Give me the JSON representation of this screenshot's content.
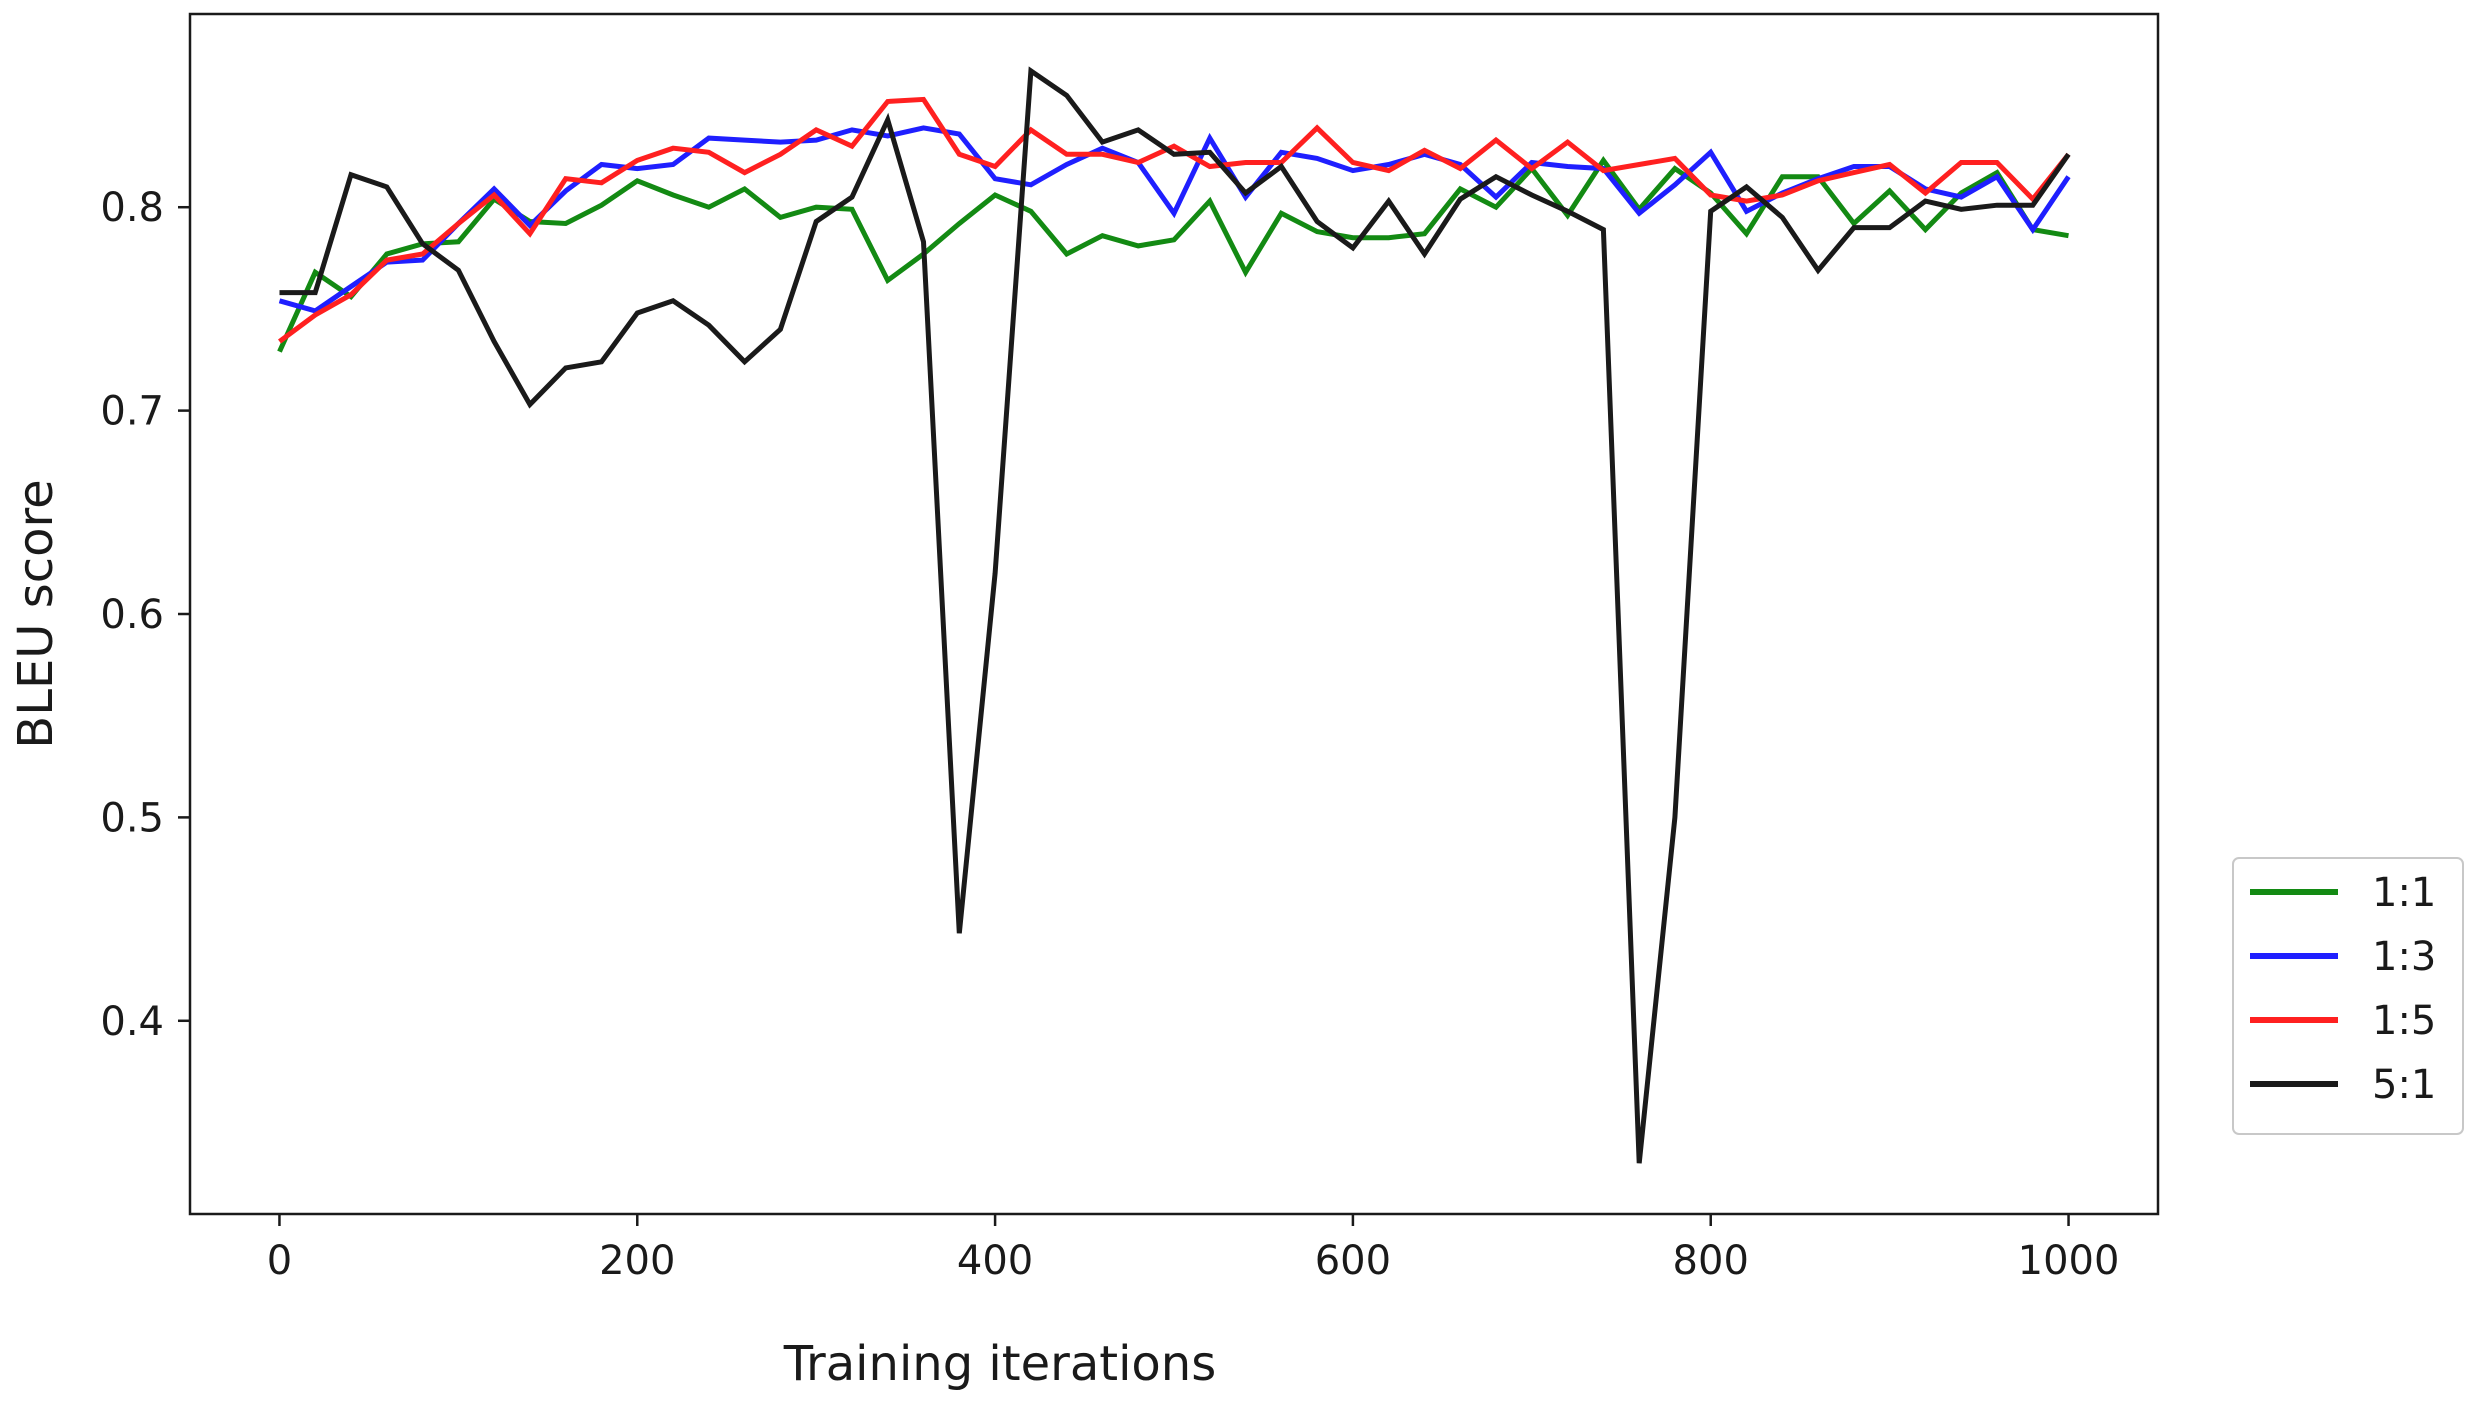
{
  "chart_data": {
    "type": "line",
    "title": "",
    "xlabel": "Training iterations",
    "ylabel": "BLEU score",
    "xlim": [
      -50,
      1050
    ],
    "ylim": [
      0.305,
      0.895
    ],
    "xticks": [
      0,
      200,
      400,
      600,
      800,
      1000
    ],
    "yticks": [
      0.4,
      0.5,
      0.6,
      0.7,
      0.8
    ],
    "xtick_labels": [
      "0",
      "200",
      "400",
      "600",
      "800",
      "1000"
    ],
    "ytick_labels": [
      "0.4",
      "0.5",
      "0.6",
      "0.7",
      "0.8"
    ],
    "grid": false,
    "legend_position": "lower right, outside plot area",
    "x": [
      0,
      20,
      40,
      60,
      80,
      100,
      120,
      140,
      160,
      180,
      200,
      220,
      240,
      260,
      280,
      300,
      320,
      340,
      360,
      380,
      400,
      420,
      440,
      460,
      480,
      500,
      520,
      540,
      560,
      580,
      600,
      620,
      640,
      660,
      680,
      700,
      720,
      740,
      760,
      780,
      800,
      820,
      840,
      860,
      880,
      900,
      920,
      940,
      960,
      980,
      1000
    ],
    "series": [
      {
        "name": "1:1",
        "color": "#138a13",
        "values": [
          0.729,
          0.768,
          0.756,
          0.777,
          0.782,
          0.783,
          0.804,
          0.793,
          0.792,
          0.801,
          0.813,
          0.806,
          0.8,
          0.809,
          0.795,
          0.8,
          0.799,
          0.764,
          0.777,
          0.792,
          0.806,
          0.798,
          0.777,
          0.786,
          0.781,
          0.784,
          0.803,
          0.768,
          0.797,
          0.788,
          0.785,
          0.785,
          0.787,
          0.809,
          0.8,
          0.819,
          0.796,
          0.823,
          0.799,
          0.819,
          0.807,
          0.787,
          0.815,
          0.815,
          0.792,
          0.808,
          0.789,
          0.807,
          0.817,
          0.789,
          0.786
        ]
      },
      {
        "name": "1:3",
        "color": "#1f1fff",
        "values": [
          0.754,
          0.749,
          0.761,
          0.773,
          0.774,
          0.792,
          0.809,
          0.791,
          0.808,
          0.821,
          0.819,
          0.821,
          0.834,
          0.833,
          0.832,
          0.833,
          0.838,
          0.835,
          0.839,
          0.836,
          0.814,
          0.811,
          0.821,
          0.829,
          0.822,
          0.797,
          0.834,
          0.805,
          0.827,
          0.824,
          0.818,
          0.821,
          0.826,
          0.821,
          0.805,
          0.822,
          0.82,
          0.819,
          0.797,
          0.811,
          0.827,
          0.798,
          0.807,
          0.814,
          0.82,
          0.82,
          0.809,
          0.805,
          0.815,
          0.789,
          0.815
        ]
      },
      {
        "name": "1:5",
        "color": "#ff2020",
        "values": [
          0.734,
          0.747,
          0.757,
          0.774,
          0.777,
          0.792,
          0.806,
          0.787,
          0.814,
          0.812,
          0.823,
          0.829,
          0.827,
          0.817,
          0.826,
          0.838,
          0.83,
          0.852,
          0.853,
          0.826,
          0.82,
          0.838,
          0.826,
          0.826,
          0.822,
          0.83,
          0.82,
          0.822,
          0.822,
          0.839,
          0.822,
          0.818,
          0.828,
          0.819,
          0.833,
          0.819,
          0.832,
          0.818,
          0.821,
          0.824,
          0.806,
          0.803,
          0.806,
          0.813,
          0.817,
          0.821,
          0.807,
          0.822,
          0.822,
          0.804,
          0.826
        ]
      },
      {
        "name": "5:1",
        "color": "#1a1a1a",
        "values": [
          0.758,
          0.758,
          0.816,
          0.81,
          0.782,
          0.769,
          0.734,
          0.703,
          0.721,
          0.724,
          0.748,
          0.754,
          0.742,
          0.724,
          0.74,
          0.793,
          0.805,
          0.843,
          0.783,
          0.443,
          0.62,
          0.867,
          0.855,
          0.832,
          0.838,
          0.826,
          0.827,
          0.807,
          0.82,
          0.793,
          0.78,
          0.803,
          0.777,
          0.804,
          0.815,
          0.806,
          0.798,
          0.789,
          0.33,
          0.5,
          0.798,
          0.81,
          0.795,
          0.769,
          0.79,
          0.79,
          0.803,
          0.799,
          0.801,
          0.801,
          0.826
        ]
      }
    ]
  }
}
